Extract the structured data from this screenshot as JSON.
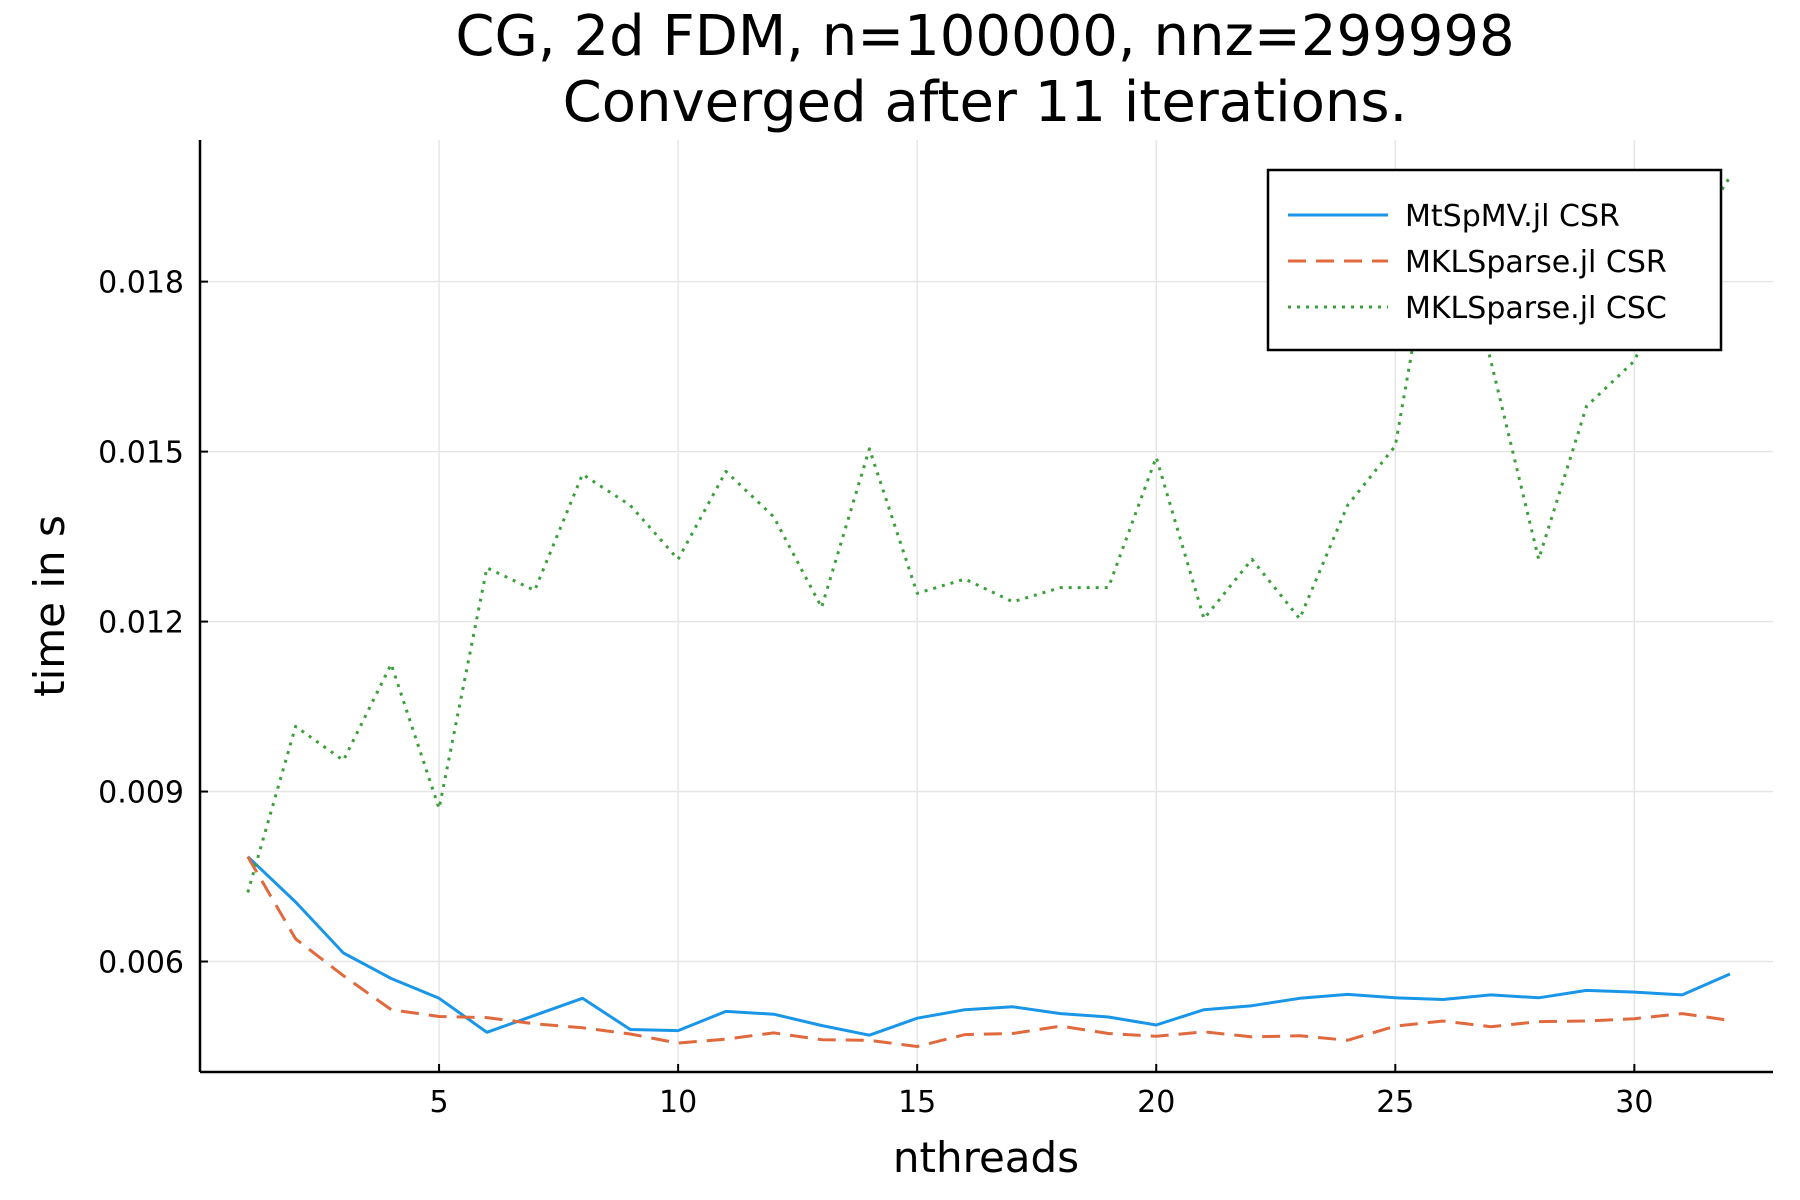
{
  "chart_data": {
    "type": "line",
    "title": [
      "CG, 2d FDM, n=100000, nnz=299998",
      "Converged after 11 iterations."
    ],
    "xlabel": "nthreads",
    "ylabel": "time in s",
    "xlim": [
      0.0,
      32.9
    ],
    "ylim": [
      0.00405,
      0.0205
    ],
    "xticks": [
      5,
      10,
      15,
      20,
      25,
      30
    ],
    "xtick_labels": [
      "5",
      "10",
      "15",
      "20",
      "25",
      "30"
    ],
    "yticks": [
      0.006,
      0.009,
      0.012,
      0.015,
      0.018
    ],
    "ytick_labels": [
      "0.006",
      "0.009",
      "0.012",
      "0.015",
      "0.018"
    ],
    "grid": true,
    "legend_position": "top-right",
    "x": [
      1,
      2,
      3,
      4,
      5,
      6,
      7,
      8,
      9,
      10,
      11,
      12,
      13,
      14,
      15,
      16,
      17,
      18,
      19,
      20,
      21,
      22,
      23,
      24,
      25,
      26,
      27,
      28,
      29,
      30,
      31,
      32
    ],
    "series": [
      {
        "name": "MtSpMV.jl CSR",
        "color": "#1a96e8",
        "dash": "solid",
        "values": [
          0.00785,
          0.00705,
          0.00615,
          0.0057,
          0.00535,
          0.00475,
          0.00505,
          0.00535,
          0.0048,
          0.00478,
          0.00512,
          0.00507,
          0.00487,
          0.0047,
          0.005,
          0.00515,
          0.0052,
          0.00508,
          0.00502,
          0.00488,
          0.00515,
          0.00522,
          0.00535,
          0.00542,
          0.00536,
          0.00533,
          0.00541,
          0.00536,
          0.00549,
          0.00546,
          0.00541,
          0.00578
        ]
      },
      {
        "name": "MKLSparse.jl CSR",
        "color": "#e06a3e",
        "dash": "dashed",
        "values": [
          0.00785,
          0.0064,
          0.00575,
          0.00515,
          0.00503,
          0.00501,
          0.0049,
          0.00483,
          0.00472,
          0.00456,
          0.00463,
          0.00474,
          0.00462,
          0.00461,
          0.0045,
          0.00471,
          0.00473,
          0.00486,
          0.00473,
          0.00468,
          0.00476,
          0.00467,
          0.00469,
          0.00461,
          0.00486,
          0.00495,
          0.00485,
          0.00494,
          0.00495,
          0.00499,
          0.00508,
          0.00496
        ]
      },
      {
        "name": "MKLSparse.jl CSC",
        "color": "#3ba03b",
        "dash": "dotted",
        "values": [
          0.00722,
          0.01015,
          0.00955,
          0.01125,
          0.0087,
          0.01295,
          0.01255,
          0.0146,
          0.01405,
          0.0131,
          0.01465,
          0.01385,
          0.01225,
          0.01505,
          0.0125,
          0.01275,
          0.01235,
          0.0126,
          0.0126,
          0.0149,
          0.01205,
          0.0131,
          0.01205,
          0.01405,
          0.0151,
          0.0199,
          0.0166,
          0.0131,
          0.0158,
          0.0166,
          0.0185,
          0.01985
        ]
      }
    ]
  }
}
